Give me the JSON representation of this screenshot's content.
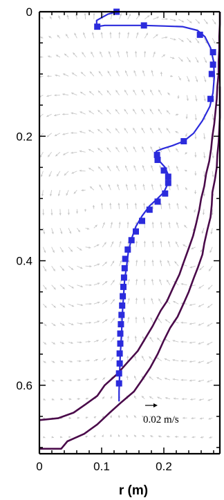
{
  "chart_data": {
    "type": "line",
    "title": "",
    "xlabel": "r (m)",
    "ylabel": "",
    "xlim": [
      0,
      0.29
    ],
    "ylim": [
      0.71,
      0
    ],
    "x_ticks": [
      {
        "value": 0,
        "label": "0"
      },
      {
        "value": 0.1,
        "label": "0.1"
      },
      {
        "value": 0.2,
        "label": "0.2"
      }
    ],
    "y_ticks": [
      {
        "value": 0,
        "label": "0"
      },
      {
        "value": 0.2,
        "label": "0.2"
      },
      {
        "value": 0.4,
        "label": "0.4"
      },
      {
        "value": 0.6,
        "label": "0.6"
      }
    ],
    "grid": false,
    "vector_field": {
      "color": "#c8c8c8",
      "reference_vector": {
        "magnitude": 0.02,
        "label": "0.02 m/s"
      }
    },
    "series": [
      {
        "color": "#2b2bdc",
        "marker": "square",
        "curve": [
          [
            0.128,
            0.626
          ],
          [
            0.128,
            0.61
          ],
          [
            0.129,
            0.58
          ],
          [
            0.13,
            0.55
          ],
          [
            0.132,
            0.52
          ],
          [
            0.133,
            0.49
          ],
          [
            0.135,
            0.46
          ],
          [
            0.137,
            0.43
          ],
          [
            0.14,
            0.41
          ],
          [
            0.143,
            0.385
          ],
          [
            0.148,
            0.365
          ],
          [
            0.155,
            0.345
          ],
          [
            0.165,
            0.328
          ],
          [
            0.177,
            0.312
          ],
          [
            0.19,
            0.3
          ],
          [
            0.2,
            0.29
          ],
          [
            0.207,
            0.275
          ],
          [
            0.207,
            0.262
          ],
          [
            0.202,
            0.25
          ],
          [
            0.193,
            0.24
          ],
          [
            0.187,
            0.232
          ],
          [
            0.188,
            0.224
          ],
          [
            0.198,
            0.22
          ],
          [
            0.214,
            0.215
          ],
          [
            0.232,
            0.208
          ],
          [
            0.248,
            0.195
          ],
          [
            0.262,
            0.175
          ],
          [
            0.274,
            0.152
          ],
          [
            0.279,
            0.13
          ],
          [
            0.281,
            0.105
          ],
          [
            0.28,
            0.08
          ],
          [
            0.275,
            0.058
          ],
          [
            0.266,
            0.04
          ],
          [
            0.254,
            0.03
          ],
          [
            0.23,
            0.024
          ],
          [
            0.2,
            0.023
          ],
          [
            0.168,
            0.022
          ],
          [
            0.135,
            0.022
          ],
          [
            0.105,
            0.022
          ],
          [
            0.092,
            0.024
          ],
          [
            0.092,
            0.014
          ],
          [
            0.11,
            0.004
          ],
          [
            0.124,
            0.0
          ]
        ],
        "markers": [
          [
            0.124,
            0.0
          ],
          [
            0.093,
            0.024
          ],
          [
            0.168,
            0.022
          ],
          [
            0.258,
            0.037
          ],
          [
            0.279,
            0.065
          ],
          [
            0.279,
            0.085
          ],
          [
            0.277,
            0.1
          ],
          [
            0.275,
            0.14
          ],
          [
            0.232,
            0.208
          ],
          [
            0.189,
            0.23
          ],
          [
            0.19,
            0.238
          ],
          [
            0.2,
            0.255
          ],
          [
            0.207,
            0.265
          ],
          [
            0.207,
            0.275
          ],
          [
            0.202,
            0.292
          ],
          [
            0.19,
            0.305
          ],
          [
            0.177,
            0.318
          ],
          [
            0.165,
            0.336
          ],
          [
            0.155,
            0.353
          ],
          [
            0.148,
            0.367
          ],
          [
            0.142,
            0.382
          ],
          [
            0.138,
            0.397
          ],
          [
            0.137,
            0.412
          ],
          [
            0.136,
            0.427
          ],
          [
            0.135,
            0.442
          ],
          [
            0.134,
            0.457
          ],
          [
            0.133,
            0.472
          ],
          [
            0.132,
            0.487
          ],
          [
            0.131,
            0.502
          ],
          [
            0.13,
            0.517
          ],
          [
            0.13,
            0.533
          ],
          [
            0.129,
            0.549
          ],
          [
            0.129,
            0.565
          ],
          [
            0.128,
            0.581
          ],
          [
            0.128,
            0.597
          ]
        ]
      },
      {
        "color": "#4a0a4a",
        "marker": "none",
        "curve": [
          [
            0.0,
            0.656
          ],
          [
            0.03,
            0.653
          ],
          [
            0.055,
            0.644
          ],
          [
            0.075,
            0.63
          ],
          [
            0.093,
            0.617
          ],
          [
            0.105,
            0.6
          ],
          [
            0.125,
            0.582
          ],
          [
            0.14,
            0.565
          ],
          [
            0.158,
            0.545
          ],
          [
            0.17,
            0.525
          ],
          [
            0.182,
            0.505
          ],
          [
            0.195,
            0.48
          ],
          [
            0.205,
            0.465
          ],
          [
            0.215,
            0.443
          ],
          [
            0.225,
            0.422
          ],
          [
            0.232,
            0.402
          ],
          [
            0.24,
            0.38
          ],
          [
            0.247,
            0.36
          ],
          [
            0.252,
            0.34
          ],
          [
            0.257,
            0.318
          ],
          [
            0.26,
            0.3
          ],
          [
            0.265,
            0.28
          ],
          [
            0.268,
            0.26
          ],
          [
            0.273,
            0.24
          ],
          [
            0.276,
            0.22
          ],
          [
            0.278,
            0.2
          ],
          [
            0.281,
            0.18
          ],
          [
            0.283,
            0.16
          ],
          [
            0.285,
            0.14
          ],
          [
            0.286,
            0.12
          ],
          [
            0.288,
            0.1
          ],
          [
            0.288,
            0.08
          ],
          [
            0.289,
            0.06
          ],
          [
            0.289,
            0.04
          ],
          [
            0.29,
            0.02
          ],
          [
            0.29,
            0.0
          ]
        ]
      },
      {
        "color": "#4a0a4a",
        "marker": "none",
        "curve": [
          [
            0.0,
            0.702
          ],
          [
            0.035,
            0.702
          ],
          [
            0.045,
            0.69
          ],
          [
            0.072,
            0.678
          ],
          [
            0.093,
            0.663
          ],
          [
            0.112,
            0.645
          ],
          [
            0.132,
            0.627
          ],
          [
            0.152,
            0.61
          ],
          [
            0.166,
            0.59
          ],
          [
            0.178,
            0.572
          ],
          [
            0.19,
            0.55
          ],
          [
            0.2,
            0.528
          ],
          [
            0.21,
            0.508
          ],
          [
            0.222,
            0.49
          ],
          [
            0.232,
            0.468
          ],
          [
            0.24,
            0.45
          ],
          [
            0.248,
            0.428
          ],
          [
            0.255,
            0.41
          ],
          [
            0.262,
            0.39
          ],
          [
            0.265,
            0.372
          ],
          [
            0.27,
            0.35
          ],
          [
            0.275,
            0.33
          ],
          [
            0.277,
            0.31
          ],
          [
            0.278,
            0.29
          ],
          [
            0.282,
            0.27
          ],
          [
            0.285,
            0.25
          ],
          [
            0.286,
            0.23
          ],
          [
            0.288,
            0.21
          ],
          [
            0.289,
            0.19
          ],
          [
            0.29,
            0.17
          ],
          [
            0.29,
            0.15
          ],
          [
            0.29,
            0.12
          ]
        ]
      }
    ]
  }
}
